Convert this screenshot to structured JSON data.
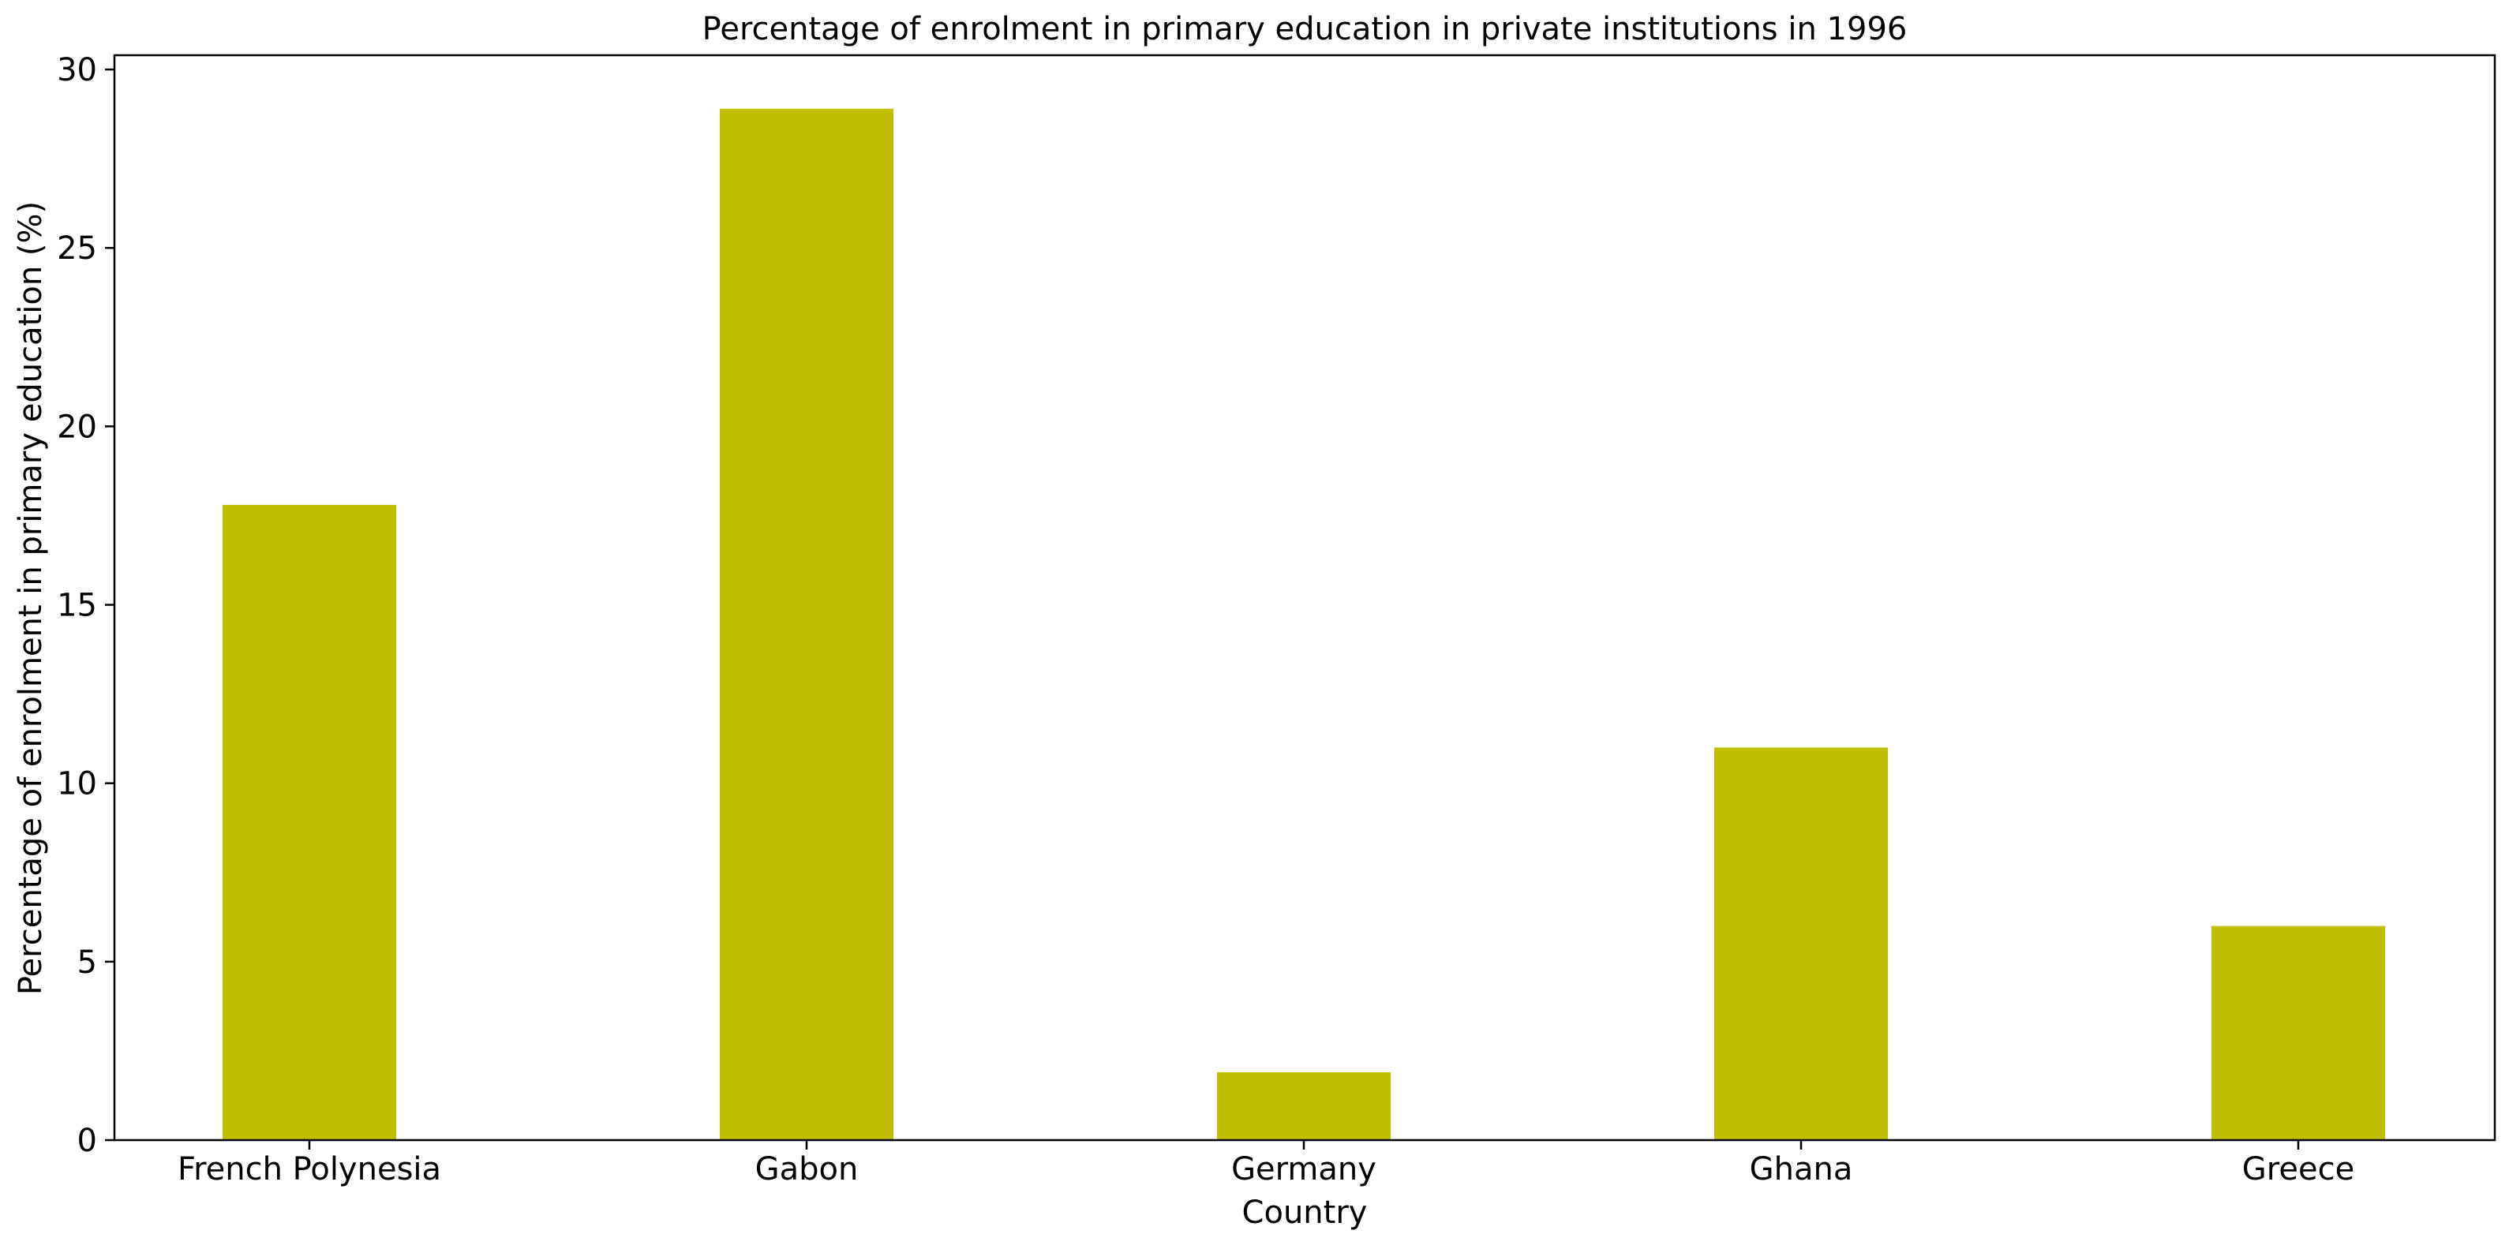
{
  "chart_data": {
    "type": "bar",
    "title": "Percentage of enrolment in primary education in private institutions in 1996",
    "xlabel": "Country",
    "ylabel": "Percentage of enrolment in primary education (%)",
    "categories": [
      "French Polynesia",
      "Gabon",
      "Germany",
      "Ghana",
      "Greece"
    ],
    "values": [
      17.8,
      28.9,
      1.9,
      11.0,
      6.0
    ],
    "ylim": [
      0,
      30.4
    ],
    "yticks": [
      0,
      5,
      10,
      15,
      20,
      25,
      30
    ],
    "ytick_labels": [
      "0",
      "5",
      "10",
      "15",
      "20",
      "25",
      "30"
    ],
    "bar_color": "#bfbf00",
    "grid": false,
    "legend": "none"
  }
}
